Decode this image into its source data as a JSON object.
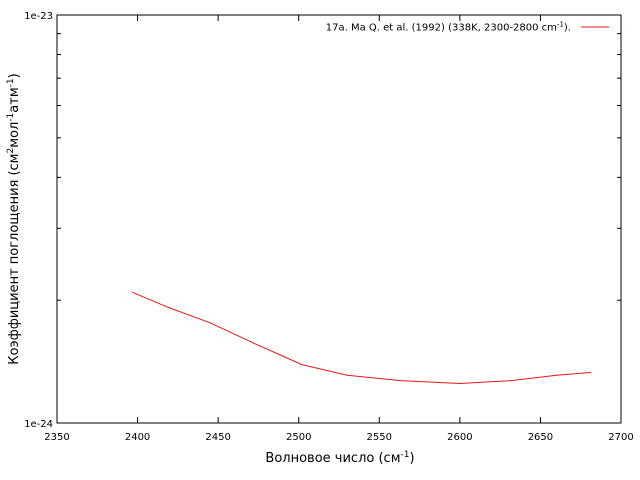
{
  "chart_data": {
    "type": "line",
    "title": "",
    "xlabel": {
      "text": "Волновое число (см",
      "sup": "-1",
      "tail": ")"
    },
    "ylabel": {
      "parts": [
        {
          "t": "Коэффициент поглощения (см"
        },
        {
          "t": "2",
          "sup": true
        },
        {
          "t": "мол"
        },
        {
          "t": "-1",
          "sup": true
        },
        {
          "t": "атм"
        },
        {
          "t": "-1",
          "sup": true
        },
        {
          "t": ")"
        }
      ]
    },
    "xlim": [
      2350,
      2700
    ],
    "ylim": [
      1e-24,
      1e-23
    ],
    "ylog": true,
    "grid": false,
    "legend_position": "top-right",
    "x_ticks": [
      2350,
      2400,
      2450,
      2500,
      2550,
      2600,
      2650,
      2700
    ],
    "x_tick_labels": [
      "2350",
      "2400",
      "2450",
      "2500",
      "2550",
      "2600",
      "2650",
      "2700"
    ],
    "y_tick_labels": [
      {
        "value": 1e-24,
        "label": "1e-24"
      },
      {
        "value": 1e-23,
        "label": "1e-23"
      }
    ],
    "y_minor_ticks": [
      2e-24,
      3e-24,
      4e-24,
      5e-24,
      6e-24,
      7e-24,
      8e-24,
      9e-24
    ],
    "series": [
      {
        "name": "17a. Ma Q. et al. (1992) (338K, 2300-2800 cm",
        "name_sup": "-1",
        "name_tail": ").",
        "color": "#e41a1c",
        "x": [
          2397,
          2419,
          2445,
          2472,
          2502,
          2530,
          2563,
          2600,
          2632,
          2660,
          2681
        ],
        "y": [
          2.09e-24,
          1.92e-24,
          1.76e-24,
          1.57e-24,
          1.39e-24,
          1.31e-24,
          1.27e-24,
          1.25e-24,
          1.27e-24,
          1.31e-24,
          1.33e-24
        ]
      }
    ]
  }
}
